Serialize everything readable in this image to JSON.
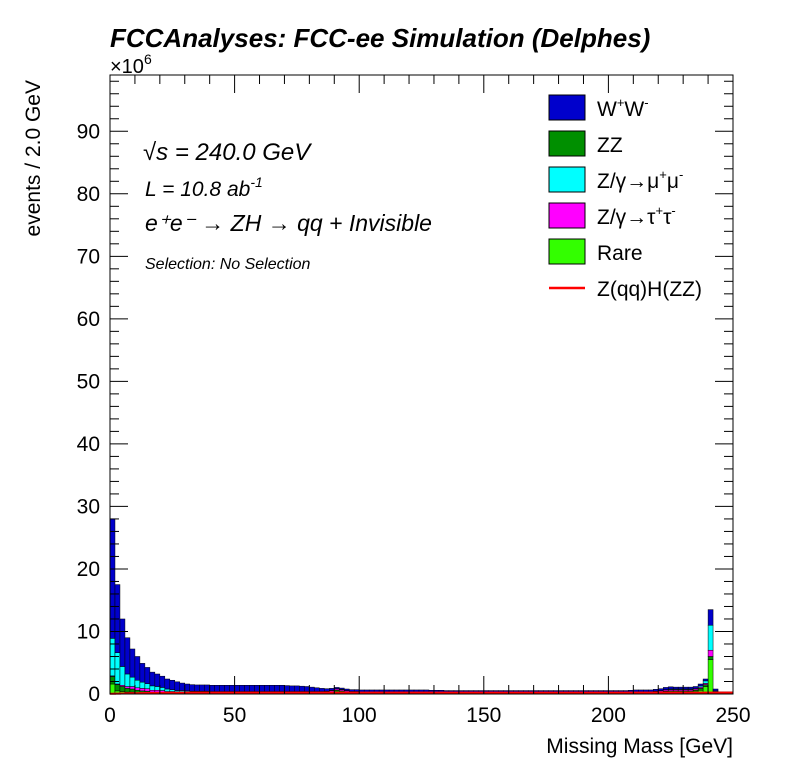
{
  "chart_data": {
    "type": "bar",
    "stacked": true,
    "title": "FCCAnalyses: FCC-ee Simulation (Delphes)",
    "xlabel": "Missing Mass [GeV]",
    "ylabel": "events / 2.0 GeV",
    "yexponent": "×10",
    "yexponent_power": "6",
    "xlim": [
      0,
      250
    ],
    "ylim": [
      0,
      99
    ],
    "xticks": [
      "0",
      "50",
      "100",
      "150",
      "200",
      "250"
    ],
    "yticks": [
      "0",
      "10",
      "20",
      "30",
      "40",
      "50",
      "60",
      "70",
      "80",
      "90"
    ],
    "legend_position": "top-right",
    "annotations": {
      "sqrt_s_symbol": "√s",
      "energy": " = 240.0 GeV",
      "lumi": "L = 10.8 ab",
      "lumi_sup": "-1",
      "process": "e⁺e⁻ → ZH → qq + Invisible",
      "selection": "Selection: No Selection"
    },
    "bin_edges": [
      0,
      2,
      4,
      6,
      8,
      10,
      12,
      14,
      16,
      18,
      20,
      22,
      24,
      26,
      28,
      30,
      32,
      34,
      36,
      38,
      40,
      42,
      44,
      46,
      48,
      50,
      52,
      54,
      56,
      58,
      60,
      62,
      64,
      66,
      68,
      70,
      72,
      74,
      76,
      78,
      80,
      82,
      84,
      86,
      88,
      90,
      92,
      94,
      96,
      98,
      100,
      102,
      104,
      106,
      108,
      110,
      112,
      114,
      116,
      118,
      120,
      122,
      124,
      126,
      128,
      130,
      132,
      134,
      136,
      138,
      140,
      142,
      144,
      146,
      148,
      150,
      152,
      154,
      156,
      158,
      160,
      162,
      164,
      166,
      168,
      170,
      172,
      174,
      176,
      178,
      180,
      182,
      184,
      186,
      188,
      190,
      192,
      194,
      196,
      198,
      200,
      202,
      204,
      206,
      208,
      210,
      212,
      214,
      216,
      218,
      220,
      222,
      224,
      226,
      228,
      230,
      232,
      234,
      236,
      238,
      240,
      242,
      244,
      246,
      248,
      250
    ],
    "series": [
      {
        "name": "Rare",
        "color": "#33ff00",
        "values": [
          1.6,
          0.5,
          0.4,
          0.3,
          0.3,
          0.2,
          0.2,
          0.15,
          0.1,
          0.1,
          0.05,
          0.05,
          0.05,
          0.05,
          0.05,
          0.05,
          0.05,
          0.05,
          0.05,
          0.05,
          0.05,
          0.05,
          0.05,
          0.05,
          0.05,
          0.05,
          0.05,
          0.05,
          0.05,
          0.05,
          0.05,
          0.05,
          0.05,
          0.05,
          0.05,
          0.05,
          0.05,
          0.05,
          0.05,
          0.05,
          0.05,
          0.05,
          0.05,
          0.05,
          0.05,
          0.1,
          0.1,
          0.1,
          0.05,
          0.05,
          0.05,
          0.05,
          0.05,
          0.05,
          0.05,
          0.05,
          0.05,
          0.05,
          0.05,
          0.05,
          0.05,
          0.05,
          0.05,
          0.05,
          0.05,
          0.05,
          0.05,
          0.05,
          0.05,
          0.05,
          0.05,
          0.05,
          0.05,
          0.05,
          0.05,
          0.05,
          0.05,
          0.05,
          0.05,
          0.05,
          0.05,
          0.05,
          0.05,
          0.05,
          0.05,
          0.05,
          0.05,
          0.05,
          0.05,
          0.05,
          0.05,
          0.05,
          0.05,
          0.05,
          0.05,
          0.05,
          0.05,
          0.05,
          0.05,
          0.05,
          0.05,
          0.05,
          0.05,
          0.05,
          0.05,
          0.05,
          0.05,
          0.05,
          0.05,
          0.1,
          0.1,
          0.15,
          0.2,
          0.2,
          0.2,
          0.2,
          0.2,
          0.3,
          0.6,
          1.2,
          5.5,
          0.1,
          0.05,
          0.05,
          0.05
        ]
      },
      {
        "name": "ZZ",
        "color": "#008f00",
        "values": [
          1.2,
          1.0,
          0.8,
          0.6,
          0.5,
          0.4,
          0.3,
          0.3,
          0.2,
          0.2,
          0.2,
          0.15,
          0.15,
          0.1,
          0.1,
          0.1,
          0.1,
          0.1,
          0.1,
          0.1,
          0.1,
          0.1,
          0.1,
          0.1,
          0.1,
          0.1,
          0.1,
          0.1,
          0.1,
          0.1,
          0.1,
          0.1,
          0.1,
          0.1,
          0.1,
          0.1,
          0.1,
          0.1,
          0.1,
          0.1,
          0.1,
          0.1,
          0.1,
          0.15,
          0.3,
          0.5,
          0.4,
          0.2,
          0.1,
          0.1,
          0.05,
          0.05,
          0.05,
          0.05,
          0.05,
          0.05,
          0.05,
          0.05,
          0.05,
          0.05,
          0.05,
          0.05,
          0.05,
          0.05,
          0.05,
          0.05,
          0.05,
          0.05,
          0.05,
          0.05,
          0.05,
          0.05,
          0.05,
          0.05,
          0.05,
          0.05,
          0.05,
          0.05,
          0.05,
          0.05,
          0.05,
          0.05,
          0.05,
          0.05,
          0.05,
          0.05,
          0.05,
          0.05,
          0.05,
          0.05,
          0.05,
          0.05,
          0.05,
          0.05,
          0.05,
          0.05,
          0.05,
          0.05,
          0.05,
          0.05,
          0.05,
          0.05,
          0.05,
          0.05,
          0.05,
          0.05,
          0.05,
          0.05,
          0.05,
          0.1,
          0.2,
          0.3,
          0.3,
          0.3,
          0.3,
          0.3,
          0.3,
          0.3,
          0.3,
          0.3,
          0.5,
          0.1,
          0.05,
          0.05,
          0.05
        ]
      },
      {
        "name": "Z/γ→τ⁺τ⁻",
        "color": "#ff00ff",
        "values": [
          0.1,
          0.1,
          0.2,
          0.3,
          0.4,
          0.4,
          0.4,
          0.4,
          0.3,
          0.3,
          0.3,
          0.2,
          0.2,
          0.2,
          0.2,
          0.2,
          0.2,
          0.2,
          0.2,
          0.2,
          0.2,
          0.2,
          0.2,
          0.2,
          0.2,
          0.2,
          0.2,
          0.2,
          0.2,
          0.2,
          0.2,
          0.2,
          0.2,
          0.2,
          0.2,
          0.2,
          0.2,
          0.2,
          0.2,
          0.2,
          0.2,
          0.2,
          0.2,
          0.2,
          0.2,
          0.2,
          0.2,
          0.2,
          0.2,
          0.2,
          0.2,
          0.2,
          0.2,
          0.2,
          0.2,
          0.2,
          0.2,
          0.2,
          0.2,
          0.2,
          0.2,
          0.2,
          0.2,
          0.2,
          0.2,
          0.2,
          0.2,
          0.2,
          0.2,
          0.2,
          0.2,
          0.2,
          0.2,
          0.2,
          0.2,
          0.2,
          0.2,
          0.2,
          0.2,
          0.2,
          0.2,
          0.2,
          0.2,
          0.2,
          0.2,
          0.2,
          0.2,
          0.2,
          0.2,
          0.2,
          0.2,
          0.2,
          0.2,
          0.2,
          0.2,
          0.2,
          0.2,
          0.2,
          0.2,
          0.2,
          0.2,
          0.2,
          0.2,
          0.2,
          0.2,
          0.2,
          0.2,
          0.2,
          0.2,
          0.2,
          0.2,
          0.2,
          0.2,
          0.2,
          0.2,
          0.2,
          0.2,
          0.2,
          0.2,
          0.2,
          1.0,
          0.2,
          0.1,
          0.1,
          0.1
        ]
      },
      {
        "name": "Z/γ→μ⁺μ⁻",
        "color": "#00ffff",
        "values": [
          6.0,
          5.0,
          3.0,
          2.0,
          1.5,
          1.2,
          1.0,
          0.8,
          0.7,
          0.6,
          0.5,
          0.4,
          0.3,
          0.2,
          0.2,
          0.15,
          0.1,
          0.1,
          0.1,
          0.1,
          0.05,
          0.05,
          0.05,
          0.05,
          0.05,
          0.05,
          0.05,
          0.05,
          0.05,
          0.05,
          0.05,
          0.05,
          0.05,
          0.05,
          0.05,
          0.05,
          0.05,
          0.05,
          0.05,
          0.05,
          0.05,
          0.05,
          0.05,
          0.05,
          0.05,
          0.05,
          0.05,
          0.05,
          0.05,
          0.05,
          0.05,
          0.05,
          0.05,
          0.05,
          0.05,
          0.05,
          0.05,
          0.05,
          0.05,
          0.05,
          0.05,
          0.05,
          0.05,
          0.05,
          0.05,
          0.05,
          0.05,
          0.05,
          0.05,
          0.05,
          0.05,
          0.05,
          0.05,
          0.05,
          0.05,
          0.05,
          0.05,
          0.05,
          0.05,
          0.05,
          0.05,
          0.05,
          0.05,
          0.05,
          0.05,
          0.05,
          0.05,
          0.05,
          0.05,
          0.05,
          0.05,
          0.05,
          0.05,
          0.05,
          0.05,
          0.05,
          0.05,
          0.05,
          0.05,
          0.05,
          0.05,
          0.05,
          0.05,
          0.05,
          0.05,
          0.05,
          0.05,
          0.05,
          0.05,
          0.05,
          0.05,
          0.05,
          0.1,
          0.1,
          0.1,
          0.1,
          0.1,
          0.1,
          0.2,
          0.4,
          4.0,
          0.1,
          0.05,
          0.05,
          0.05
        ]
      },
      {
        "name": "W⁺W⁻",
        "color": "#0000cc",
        "values": [
          19.1,
          10.9,
          7.6,
          5.8,
          4.5,
          3.8,
          3.0,
          2.6,
          2.2,
          2.0,
          1.8,
          1.6,
          1.5,
          1.4,
          1.2,
          1.1,
          1.05,
          1.0,
          1.0,
          1.0,
          1.0,
          1.0,
          1.0,
          1.0,
          1.0,
          1.0,
          1.0,
          1.0,
          1.0,
          1.0,
          1.0,
          1.0,
          1.0,
          1.0,
          1.0,
          0.95,
          0.9,
          0.9,
          0.85,
          0.8,
          0.7,
          0.6,
          0.5,
          0.4,
          0.3,
          0.2,
          0.2,
          0.25,
          0.3,
          0.3,
          0.3,
          0.3,
          0.3,
          0.3,
          0.3,
          0.3,
          0.3,
          0.3,
          0.3,
          0.3,
          0.3,
          0.3,
          0.3,
          0.3,
          0.25,
          0.25,
          0.25,
          0.2,
          0.2,
          0.2,
          0.2,
          0.2,
          0.2,
          0.2,
          0.2,
          0.2,
          0.2,
          0.2,
          0.2,
          0.2,
          0.2,
          0.2,
          0.2,
          0.2,
          0.2,
          0.2,
          0.2,
          0.2,
          0.2,
          0.2,
          0.2,
          0.2,
          0.2,
          0.2,
          0.2,
          0.2,
          0.2,
          0.2,
          0.2,
          0.2,
          0.2,
          0.2,
          0.2,
          0.2,
          0.25,
          0.3,
          0.3,
          0.3,
          0.3,
          0.3,
          0.3,
          0.35,
          0.35,
          0.3,
          0.3,
          0.3,
          0.3,
          0.3,
          0.3,
          0.3,
          2.5,
          0.3,
          0.1,
          0.1,
          0.1
        ]
      }
    ],
    "signal": {
      "name": "Z(qq)H(ZZ)",
      "color": "#ff0000",
      "values": [
        0.05,
        0.06,
        0.08,
        0.1,
        0.12,
        0.13,
        0.14,
        0.15,
        0.16,
        0.17,
        0.18,
        0.19,
        0.2,
        0.21,
        0.22,
        0.22,
        0.22,
        0.22,
        0.22,
        0.22,
        0.22,
        0.22,
        0.22,
        0.22,
        0.22,
        0.22,
        0.22,
        0.22,
        0.22,
        0.22,
        0.22,
        0.22,
        0.22,
        0.22,
        0.22,
        0.22,
        0.22,
        0.22,
        0.22,
        0.22,
        0.22,
        0.22,
        0.22,
        0.22,
        0.22,
        0.22,
        0.22,
        0.22,
        0.22,
        0.22,
        0.22,
        0.22,
        0.22,
        0.22,
        0.22,
        0.22,
        0.22,
        0.22,
        0.22,
        0.22,
        0.22,
        0.22,
        0.22,
        0.22,
        0.22,
        0.22,
        0.22,
        0.22,
        0.22,
        0.22,
        0.22,
        0.22,
        0.22,
        0.22,
        0.22,
        0.22,
        0.22,
        0.22,
        0.22,
        0.22,
        0.22,
        0.22,
        0.22,
        0.22,
        0.22,
        0.22,
        0.22,
        0.22,
        0.22,
        0.22,
        0.22,
        0.22,
        0.22,
        0.22,
        0.22,
        0.22,
        0.22,
        0.22,
        0.22,
        0.22,
        0.22,
        0.22,
        0.22,
        0.22,
        0.22,
        0.22,
        0.22,
        0.22,
        0.22,
        0.22,
        0.22,
        0.22,
        0.22,
        0.22,
        0.22,
        0.22,
        0.22,
        0.22,
        0.22,
        0.22,
        0.22,
        0.22,
        0.22,
        0.22,
        0.22
      ]
    },
    "legend": [
      {
        "label": "W",
        "sup1": "+",
        "label2": "W",
        "sup2": "-",
        "color": "#0000cc",
        "kind": "box"
      },
      {
        "label": "ZZ",
        "color": "#008f00",
        "kind": "box"
      },
      {
        "label": "Z/γ→μ",
        "sup1": "+",
        "label2": "μ",
        "sup2": "-",
        "color": "#00ffff",
        "kind": "box"
      },
      {
        "label": "Z/γ→τ",
        "sup1": "+",
        "label2": "τ",
        "sup2": "-",
        "color": "#ff00ff",
        "kind": "box"
      },
      {
        "label": "Rare",
        "color": "#33ff00",
        "kind": "box"
      },
      {
        "label": "Z(qq)H(ZZ)",
        "color": "#ff0000",
        "kind": "line"
      }
    ]
  }
}
